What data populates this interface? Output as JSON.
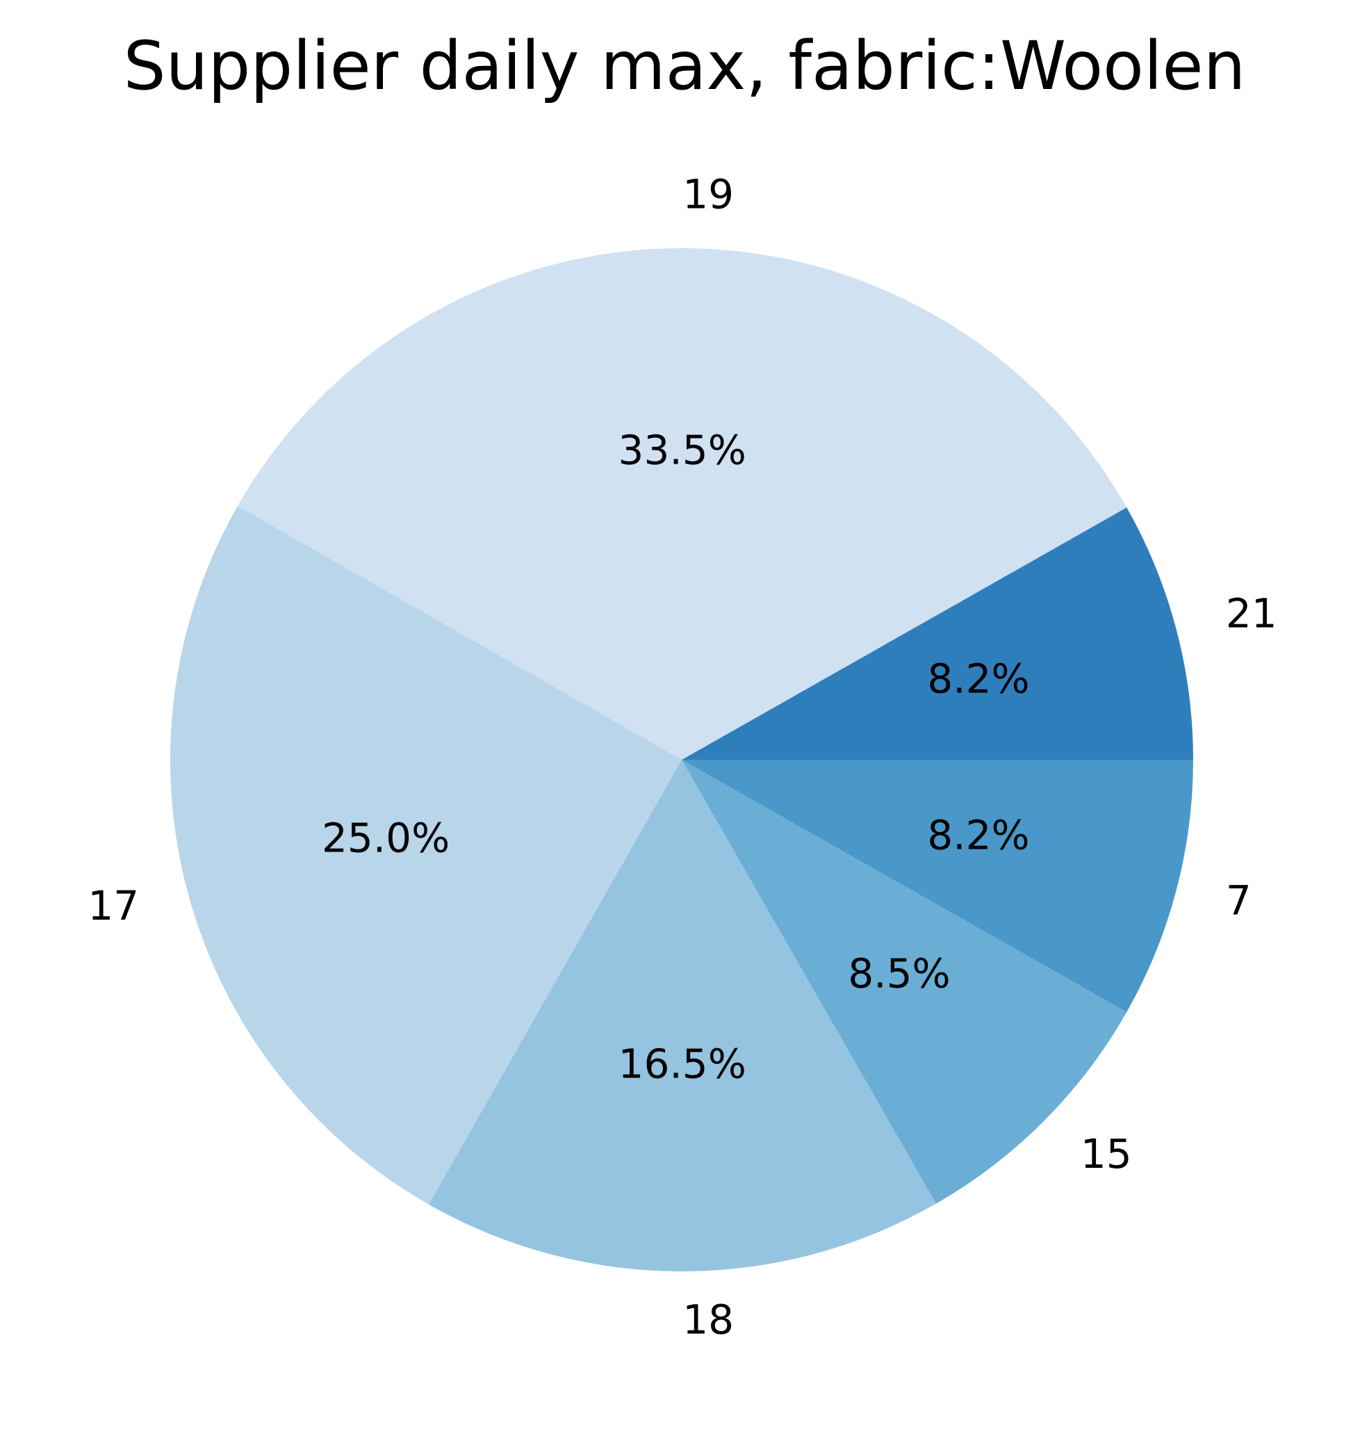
{
  "chart_data": {
    "type": "pie",
    "title": "Supplier daily max, fabric:Woolen",
    "slices": [
      {
        "label": "21",
        "percent": 8.2,
        "percent_label": "8.2%",
        "color": "#2f7ebc"
      },
      {
        "label": "19",
        "percent": 33.5,
        "percent_label": "33.5%",
        "color": "#d0e1f2"
      },
      {
        "label": "17",
        "percent": 25.0,
        "percent_label": "25.0%",
        "color": "#b8d5ea"
      },
      {
        "label": "18",
        "percent": 16.5,
        "percent_label": "16.5%",
        "color": "#95c4e0"
      },
      {
        "label": "15",
        "percent": 8.5,
        "percent_label": "8.5%",
        "color": "#6aaed6"
      },
      {
        "label": "7",
        "percent": 8.2,
        "percent_label": "8.2%",
        "color": "#4a98c9"
      }
    ],
    "legend": "none"
  }
}
